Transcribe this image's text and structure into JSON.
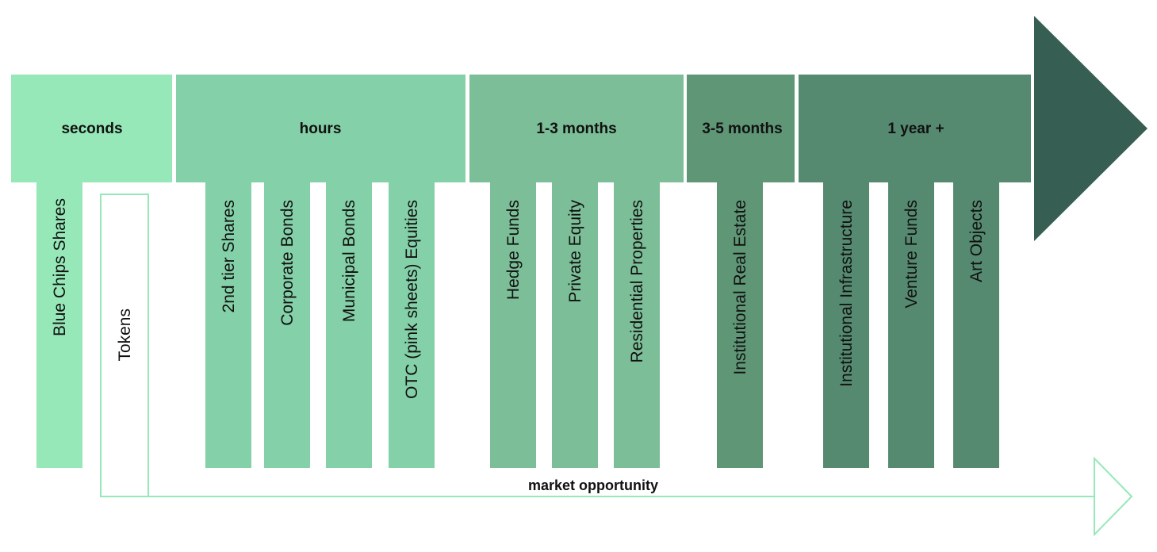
{
  "colors": {
    "seconds": "#96e8b8",
    "hours": "#84d0a8",
    "months_1_3": "#7cbe98",
    "months_3_5": "#5e9676",
    "year_plus": "#558a70",
    "arrow_head": "#375e52",
    "outline": "#96e8b8",
    "text": "#111111"
  },
  "timeline": {
    "segments": [
      {
        "id": "seconds",
        "label": "seconds"
      },
      {
        "id": "hours",
        "label": "hours"
      },
      {
        "id": "months-1-3",
        "label": "1-3 months"
      },
      {
        "id": "months-3-5",
        "label": "3-5 months"
      },
      {
        "id": "year-plus",
        "label": "1 year +"
      }
    ]
  },
  "assets": [
    {
      "id": "blue-chips-shares",
      "label": "Blue Chips Shares"
    },
    {
      "id": "tokens",
      "label": "Tokens"
    },
    {
      "id": "2nd-tier-shares",
      "label": "2nd tier Shares"
    },
    {
      "id": "corporate-bonds",
      "label": "Corporate Bonds"
    },
    {
      "id": "municipal-bonds",
      "label": "Municipal Bonds"
    },
    {
      "id": "otc-equities",
      "label": "OTC (pink sheets) Equities"
    },
    {
      "id": "hedge-funds",
      "label": "Hedge Funds"
    },
    {
      "id": "private-equity",
      "label": "Private Equity"
    },
    {
      "id": "residential-properties",
      "label": "Residential Properties"
    },
    {
      "id": "institutional-real-estate",
      "label": "Institutional Real Estate"
    },
    {
      "id": "institutional-infrastructure",
      "label": "Institutional Infrastructure"
    },
    {
      "id": "venture-funds",
      "label": "Venture Funds"
    },
    {
      "id": "art-objects",
      "label": "Art Objects"
    }
  ],
  "market_opportunity": {
    "label": "market opportunity"
  }
}
